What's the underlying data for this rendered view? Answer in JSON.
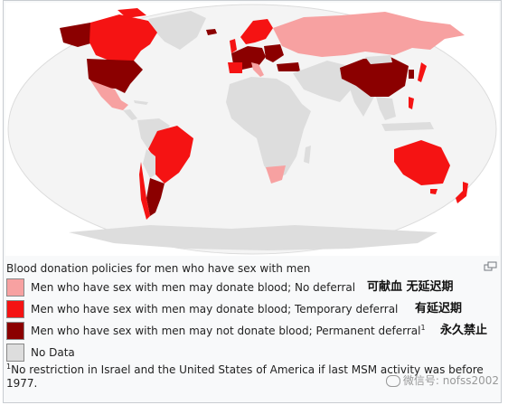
{
  "title": "Blood donation policies for men who have sex with men",
  "colors": {
    "no_deferral": "#f7a1a1",
    "temporary_deferral": "#f51313",
    "permanent_deferral": "#8b0000",
    "no_data": "#dddddd",
    "ocean": "#ffffff",
    "sphere": "#f2f2f2"
  },
  "legend": [
    {
      "key": "no_deferral",
      "text": "Men who have sex with men may donate blood; No deferral",
      "zh": "可献血 无延迟期",
      "sup": ""
    },
    {
      "key": "temporary_deferral",
      "text": "Men who have sex with men may donate blood; Temporary deferral",
      "zh": "有延迟期",
      "sup": ""
    },
    {
      "key": "permanent_deferral",
      "text": "Men who have sex with men may not donate blood; Permanent deferral",
      "zh": "永久禁止",
      "sup": "1"
    },
    {
      "key": "no_data",
      "text": "No Data",
      "zh": "",
      "sup": ""
    }
  ],
  "footnote": {
    "sup": "1",
    "text": "No restriction in Israel and the United States of America if last MSM activity was before 1977."
  },
  "watermark": "微信号: nofss2002",
  "icons": {
    "enlarge": "enlarge-icon",
    "watermark": "wechat-icon"
  }
}
